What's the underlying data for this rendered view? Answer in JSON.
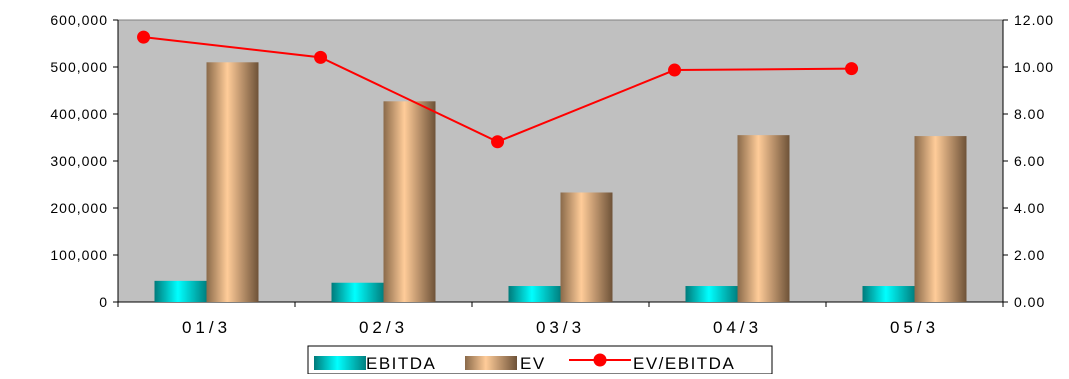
{
  "chart_data": {
    "type": "bar",
    "categories": [
      "01/3",
      "02/3",
      "03/3",
      "04/3",
      "05/3"
    ],
    "series": [
      {
        "name": "EBITDA",
        "type": "bar",
        "axis": "left",
        "values": [
          45000,
          41000,
          34000,
          34000,
          34000
        ]
      },
      {
        "name": "EV",
        "type": "bar",
        "axis": "left",
        "values": [
          510000,
          427000,
          233000,
          355000,
          353000
        ]
      },
      {
        "name": "EV/EBITDA",
        "type": "line",
        "axis": "right",
        "values": [
          11.27,
          10.41,
          6.82,
          9.87,
          9.93
        ]
      }
    ],
    "y_left": {
      "ylim": [
        0,
        600000
      ],
      "ticks": [
        "0",
        "100,000",
        "200,000",
        "300,000",
        "400,000",
        "500,000",
        "600,000"
      ]
    },
    "y_right": {
      "ylim": [
        0,
        12
      ],
      "ticks": [
        "0.00",
        "2.00",
        "4.00",
        "6.00",
        "8.00",
        "10.00",
        "12.00"
      ]
    },
    "title": "",
    "xlabel": "",
    "ylabel": "",
    "grid": false,
    "plot_background": "#c0c0c0",
    "legend_position": "bottom",
    "colors": {
      "ebitda": "#00c8c8",
      "ev": "#f0b27a",
      "ratio": "#ff0000"
    }
  }
}
